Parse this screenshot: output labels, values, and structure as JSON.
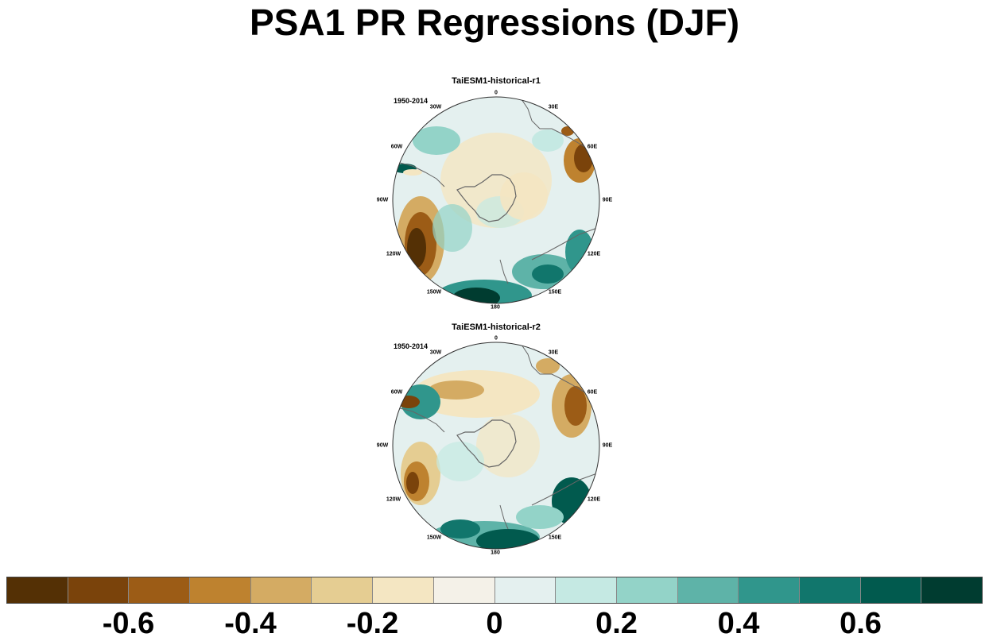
{
  "title": "PSA1 PR Regressions (DJF)",
  "panels": [
    {
      "title": "TaiESM1-historical-r1",
      "period": "1950-2014"
    },
    {
      "title": "TaiESM1-historical-r2",
      "period": "1950-2014"
    }
  ],
  "longitude_labels": {
    "lon_0": "0",
    "lon_30e": "30E",
    "lon_60e": "60E",
    "lon_90e": "90E",
    "lon_120e": "120E",
    "lon_150e": "150E",
    "lon_180": "180",
    "lon_150w": "150W",
    "lon_120w": "120W",
    "lon_90w": "90W",
    "lon_60w": "60W",
    "lon_30w": "30W"
  },
  "colorbar": {
    "colors": [
      "#543005",
      "#7a430b",
      "#9c5c16",
      "#be822f",
      "#d4ab63",
      "#e5cd92",
      "#f4e6c2",
      "#f4f1e8",
      "#e4f0ef",
      "#c5e9e3",
      "#93d3c8",
      "#5eb3a8",
      "#30968c",
      "#11766c",
      "#015a4e",
      "#003c30"
    ],
    "tick_labels": [
      "-0.6",
      "-0.4",
      "-0.2",
      "0",
      "0.2",
      "0.4",
      "0.6"
    ]
  }
}
